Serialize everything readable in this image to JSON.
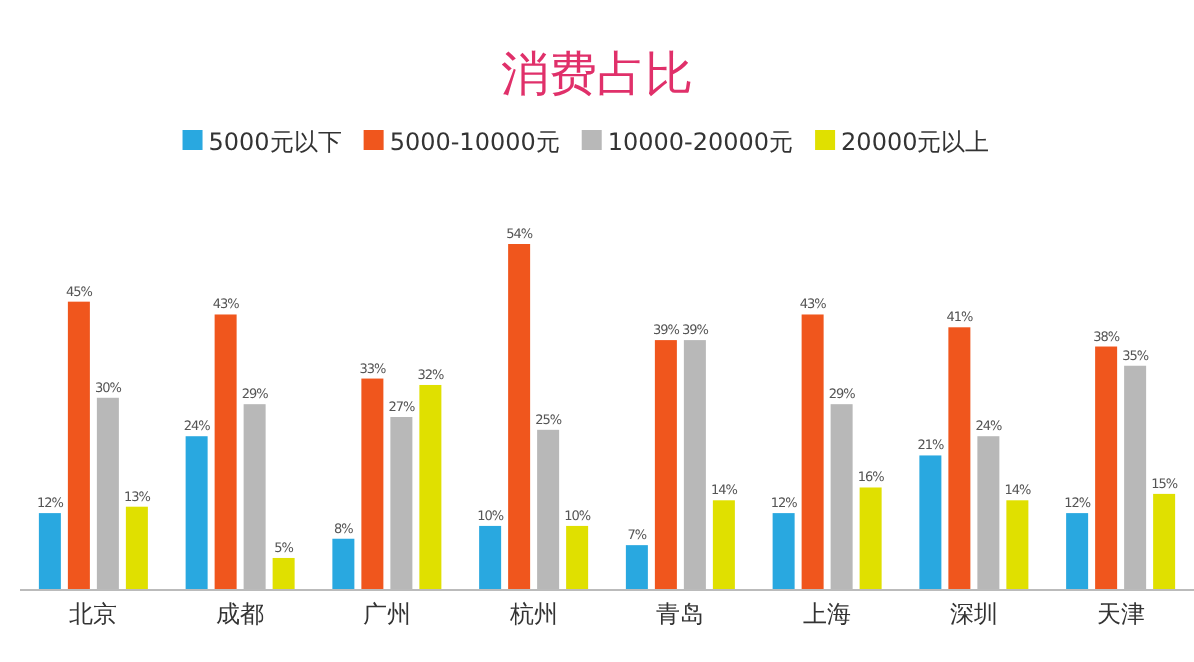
{
  "chart_data": {
    "type": "bar",
    "title": "消费占比",
    "categories": [
      "北京",
      "成都",
      "广州",
      "杭州",
      "青岛",
      "上海",
      "深圳",
      "天津"
    ],
    "series": [
      {
        "name": "5000元以下",
        "color": "#29a8e0",
        "values": [
          12,
          24,
          8,
          10,
          7,
          12,
          21,
          12
        ],
        "value_labels": [
          "12%",
          "24%",
          "8%",
          "10%",
          "7%",
          "12%",
          "21%",
          "12%"
        ]
      },
      {
        "name": "5000-10000元",
        "color": "#f0561d",
        "values": [
          45,
          43,
          33,
          54,
          39,
          43,
          41,
          38
        ],
        "value_labels": [
          "45%",
          "43%",
          "33%",
          "54%",
          "39%",
          "43%",
          "41%",
          "38%"
        ]
      },
      {
        "name": "10000-20000元",
        "color": "#b8b8b8",
        "values": [
          30,
          29,
          27,
          25,
          39,
          29,
          24,
          35
        ],
        "value_labels": [
          "30%",
          "29%",
          "27%",
          "25%",
          "39%",
          "29%",
          "24%",
          "35%"
        ]
      },
      {
        "name": "20000元以上",
        "color": "#e0e000",
        "values": [
          13,
          5,
          32,
          10,
          14,
          16,
          14,
          15
        ],
        "value_labels": [
          "13%",
          "5%",
          "32%",
          "10%",
          "14%",
          "16%",
          "14%",
          "15%"
        ]
      }
    ],
    "legend": "top",
    "grid": false
  }
}
